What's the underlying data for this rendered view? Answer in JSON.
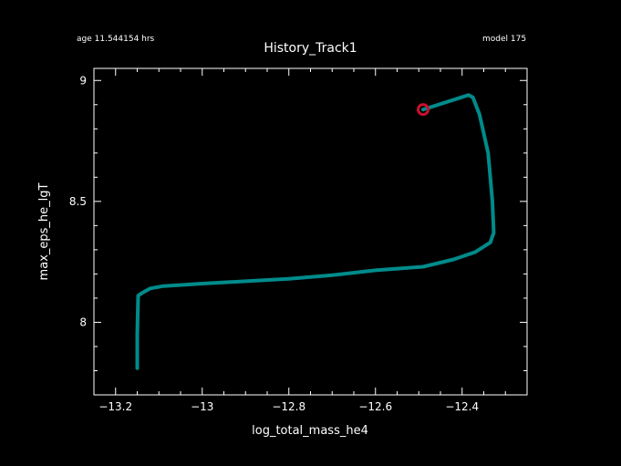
{
  "header": {
    "age_text": "age 11.544154 hrs",
    "model_text": "model 175"
  },
  "chart_data": {
    "type": "line",
    "title": "History_Track1",
    "xlabel": "log_total_mass_he4",
    "ylabel": "max_eps_he_lgT",
    "xlim": [
      -13.25,
      -12.25
    ],
    "ylim": [
      7.7,
      9.05
    ],
    "x_ticks": [
      -13.2,
      -13,
      -12.8,
      -12.6,
      -12.4
    ],
    "x_tick_labels": [
      "−13.2",
      "−13",
      "−12.8",
      "−12.6",
      "−12.4"
    ],
    "y_ticks": [
      8,
      8.5,
      9
    ],
    "y_tick_labels": [
      "8",
      "8.5",
      "9"
    ],
    "grid": false,
    "colors": {
      "background": "#000000",
      "frame": "#ffffff",
      "line": "#008b8b",
      "marker": "#c8102e"
    },
    "series": [
      {
        "x": [
          -13.15,
          -13.15,
          -13.148,
          -13.14,
          -13.12,
          -13.09,
          -13.0,
          -12.9,
          -12.8,
          -12.7,
          -12.6,
          -12.49,
          -12.42,
          -12.37,
          -12.335,
          -12.327,
          -12.33,
          -12.34,
          -12.36,
          -12.375,
          -12.385,
          -12.49
        ],
        "y": [
          7.81,
          7.95,
          8.11,
          8.12,
          8.14,
          8.15,
          8.16,
          8.17,
          8.18,
          8.195,
          8.215,
          8.23,
          8.26,
          8.29,
          8.33,
          8.37,
          8.5,
          8.7,
          8.86,
          8.93,
          8.94,
          8.88
        ]
      }
    ],
    "marker_point": {
      "x": -12.49,
      "y": 8.88
    }
  }
}
